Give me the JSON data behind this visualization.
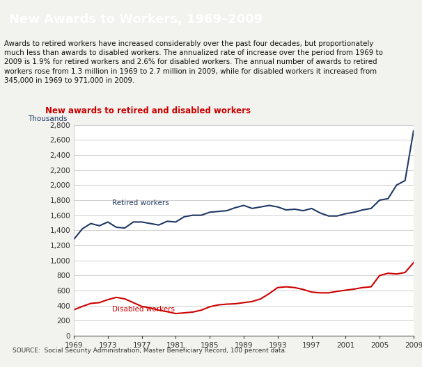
{
  "title_box": "New Awards to Workers, 1969–2009",
  "title_box_bg": "#1F3864",
  "title_box_color": "#FFFFFF",
  "subtitle": "New awards to retired and disabled workers",
  "subtitle_color": "#CC0000",
  "body_text_lines": [
    "Awards to retired workers have increased considerably over the past four decades, but proportionately",
    "much less than awards to disabled workers. The annualized rate of increase over the period from 1969 to",
    "2009 is 1.9% for retired workers and 2.6% for disabled workers. The annual number of awards to retired",
    "workers rose from 1.3 million in 1969 to 2.7 million in 2009, while for disabled workers it increased from",
    "345,000 in 1969 to 971,000 in 2009."
  ],
  "ylabel": "Thousands",
  "source": "SOURCE:  Social Security Administration, Master Beneficiary Record, 100 percent data.",
  "ylim": [
    0,
    2800
  ],
  "yticks": [
    0,
    200,
    400,
    600,
    800,
    1000,
    1200,
    1400,
    1600,
    1800,
    2000,
    2200,
    2400,
    2600,
    2800
  ],
  "bg_color": "#F2F2EE",
  "plot_bg": "#FFFFFF",
  "retired_color": "#1F3864",
  "disabled_color": "#CC0000",
  "retired_label": "Retired workers",
  "disabled_label": "Disabled workers",
  "years": [
    1969,
    1970,
    1971,
    1972,
    1973,
    1974,
    1975,
    1976,
    1977,
    1978,
    1979,
    1980,
    1981,
    1982,
    1983,
    1984,
    1985,
    1986,
    1987,
    1988,
    1989,
    1990,
    1991,
    1992,
    1993,
    1994,
    1995,
    1996,
    1997,
    1998,
    1999,
    2000,
    2001,
    2002,
    2003,
    2004,
    2005,
    2006,
    2007,
    2008,
    2009
  ],
  "retired": [
    1280,
    1420,
    1490,
    1460,
    1510,
    1440,
    1430,
    1510,
    1510,
    1490,
    1470,
    1520,
    1510,
    1580,
    1600,
    1600,
    1640,
    1650,
    1660,
    1700,
    1730,
    1690,
    1710,
    1730,
    1710,
    1670,
    1680,
    1660,
    1690,
    1630,
    1590,
    1590,
    1620,
    1640,
    1670,
    1690,
    1800,
    1820,
    2000,
    2060,
    2720
  ],
  "disabled": [
    345,
    390,
    430,
    440,
    480,
    510,
    490,
    440,
    390,
    370,
    340,
    320,
    295,
    305,
    315,
    340,
    385,
    410,
    420,
    425,
    440,
    455,
    490,
    560,
    640,
    650,
    640,
    615,
    580,
    570,
    570,
    590,
    605,
    620,
    640,
    650,
    800,
    830,
    820,
    840,
    971
  ]
}
